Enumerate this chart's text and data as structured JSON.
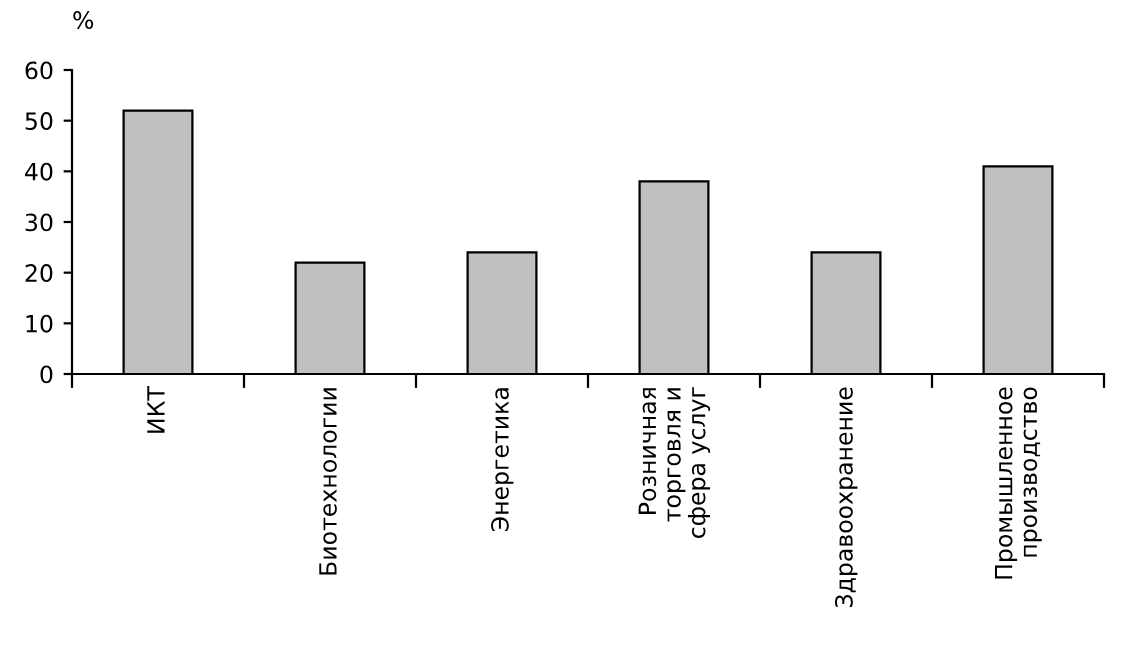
{
  "chart_data": {
    "type": "bar",
    "ylabel": "%",
    "categories": [
      "ИКТ",
      "Биотехнологии",
      "Энергетика",
      "Розничная\nторговля и\nсфера услуг",
      "Здравоохранение",
      "Промышленное\nпроизводство"
    ],
    "values": [
      52,
      22,
      24,
      38,
      24,
      41
    ],
    "color": "#c0c0c0",
    "ylim": [
      0,
      60
    ],
    "yticks": [
      0,
      10,
      20,
      30,
      40,
      50,
      60
    ],
    "grid": false,
    "legend": false
  }
}
